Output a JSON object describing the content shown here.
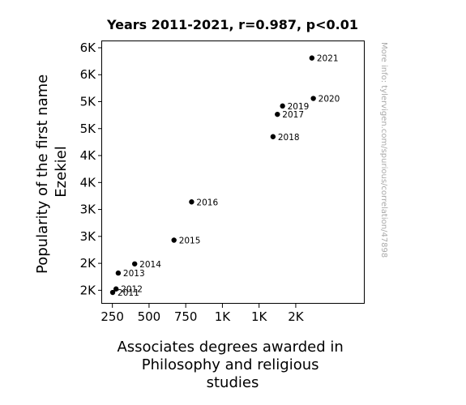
{
  "chart_data": {
    "type": "scatter",
    "title": "Years 2011-2021, r=0.987, p<0.01",
    "xlabel": [
      "Associates degrees awarded in",
      "Philosophy and religious",
      "studies"
    ],
    "ylabel": [
      "Popularity of the first name",
      "Ezekiel"
    ],
    "xlim": [
      180,
      1970
    ],
    "ylim": [
      1250,
      6120
    ],
    "x_ticks": [
      {
        "value": 250,
        "label": "250"
      },
      {
        "value": 500,
        "label": "500"
      },
      {
        "value": 750,
        "label": "750"
      },
      {
        "value": 1000,
        "label": "1K"
      },
      {
        "value": 1250,
        "label": "1K"
      },
      {
        "value": 1500,
        "label": "2K"
      }
    ],
    "y_ticks": [
      {
        "value": 1500,
        "label": "2K"
      },
      {
        "value": 2000,
        "label": "2K"
      },
      {
        "value": 2500,
        "label": "3K"
      },
      {
        "value": 3000,
        "label": "3K"
      },
      {
        "value": 3500,
        "label": "4K"
      },
      {
        "value": 4000,
        "label": "4K"
      },
      {
        "value": 4500,
        "label": "5K"
      },
      {
        "value": 5000,
        "label": "5K"
      },
      {
        "value": 5500,
        "label": "6K"
      },
      {
        "value": 6000,
        "label": "6K"
      }
    ],
    "points": [
      {
        "label": "2011",
        "x": 252,
        "y": 1460
      },
      {
        "label": "2012",
        "x": 275,
        "y": 1525
      },
      {
        "label": "2013",
        "x": 290,
        "y": 1820
      },
      {
        "label": "2014",
        "x": 402,
        "y": 1990
      },
      {
        "label": "2015",
        "x": 670,
        "y": 2430
      },
      {
        "label": "2016",
        "x": 790,
        "y": 3140
      },
      {
        "label": "2017",
        "x": 1375,
        "y": 4765
      },
      {
        "label": "2018",
        "x": 1345,
        "y": 4350
      },
      {
        "label": "2019",
        "x": 1410,
        "y": 4920
      },
      {
        "label": "2020",
        "x": 1620,
        "y": 5060
      },
      {
        "label": "2021",
        "x": 1610,
        "y": 5810
      }
    ],
    "grid": false,
    "color": "#000000"
  },
  "watermark": "More info: tylervigen.com/spurious/correlation/47898"
}
